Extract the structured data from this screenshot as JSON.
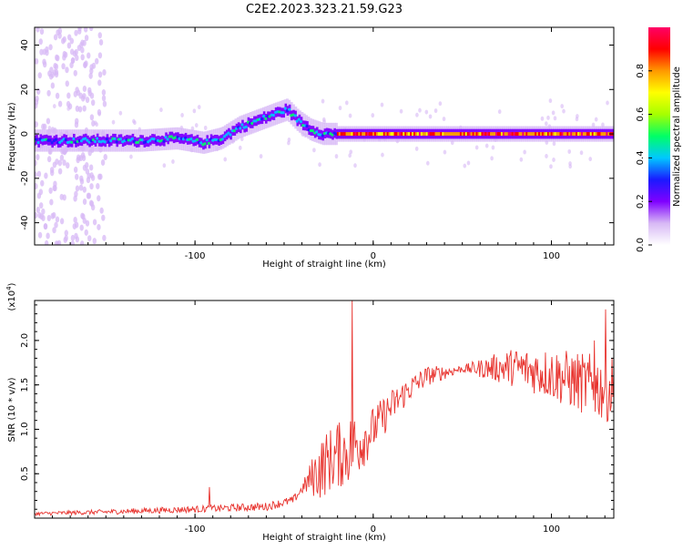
{
  "title": "C2E2.2023.323.21.59.G23",
  "chart_data": [
    {
      "type": "heatmap",
      "xlabel": "Height of straight line (km)",
      "ylabel": "Frequency (Hz)",
      "xlim": [
        -190,
        135
      ],
      "ylim": [
        -50,
        48
      ],
      "x_ticks": [
        -100,
        0,
        100
      ],
      "y_ticks": [
        -40,
        -20,
        0,
        20,
        40
      ],
      "colorbar": {
        "label": "Normalized spectral amplitude",
        "range": [
          0,
          1
        ],
        "ticks": [
          0.0,
          0.2,
          0.4,
          0.6,
          0.8
        ],
        "tick_labels": [
          "0.0",
          "0.2",
          "0.4",
          "0.6",
          "0.8"
        ],
        "colormap": [
          "#ffffff",
          "#d7b8f5",
          "#7f00ff",
          "#1a1aff",
          "#00c8ff",
          "#00ff66",
          "#a6ff00",
          "#ffff00",
          "#ff9900",
          "#ff0000",
          "#ff0066"
        ]
      },
      "ridge": {
        "x": [
          -190,
          -160,
          -130,
          -110,
          -95,
          -85,
          -75,
          -65,
          -55,
          -48,
          -42,
          -35,
          -28,
          -22,
          -15,
          0,
          40,
          80,
          120,
          135
        ],
        "y": [
          -3,
          -3,
          -3,
          -2,
          -4,
          -2,
          3,
          6,
          9,
          11,
          6,
          2,
          0,
          0,
          0,
          0,
          0,
          0,
          0,
          0
        ]
      },
      "line_segment": {
        "x": [
          -20,
          135
        ],
        "y": [
          0,
          0
        ],
        "amplitude": 0.85
      }
    },
    {
      "type": "line",
      "xlabel": "Height of straight line (km)",
      "ylabel": "SNR (10 * v/v)",
      "multiplier_label": "(x10",
      "multiplier_exp": "4",
      "xlim": [
        -190,
        135
      ],
      "ylim": [
        0,
        2.45
      ],
      "x_ticks": [
        -100,
        0,
        100
      ],
      "y_ticks": [
        0.5,
        1.0,
        1.5,
        2.0
      ],
      "y_tick_labels": [
        "0.5",
        "1.0",
        "1.5",
        "2.0"
      ],
      "color": "#e8332e",
      "envelope": {
        "x": [
          -190,
          -150,
          -100,
          -60,
          -45,
          -35,
          -25,
          -15,
          -8,
          0,
          10,
          20,
          30,
          50,
          80,
          100,
          120,
          135
        ],
        "y": [
          0.05,
          0.07,
          0.1,
          0.13,
          0.2,
          0.45,
          0.65,
          0.75,
          0.85,
          1.0,
          1.25,
          1.45,
          1.6,
          1.68,
          1.7,
          1.62,
          1.5,
          1.45
        ]
      },
      "noise": {
        "x": [
          -190,
          -40,
          -30,
          -10,
          0,
          20,
          50,
          75,
          100,
          135
        ],
        "amp": [
          0.02,
          0.05,
          0.35,
          0.4,
          0.25,
          0.15,
          0.04,
          0.2,
          0.3,
          0.4
        ]
      },
      "spikes": [
        {
          "x": -92,
          "y": 0.35
        },
        {
          "x": -12,
          "y": 2.45
        },
        {
          "x": -20,
          "y": 1.05
        },
        {
          "x": 130,
          "y": 2.35
        },
        {
          "x": 124,
          "y": 2.0
        }
      ]
    }
  ]
}
